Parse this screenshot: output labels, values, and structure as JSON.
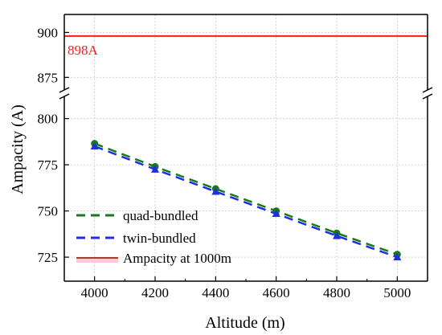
{
  "chart_data": {
    "type": "line",
    "xlabel": "Altitude (m)",
    "ylabel": "Ampacity (A)",
    "x": [
      4000,
      4200,
      4400,
      4600,
      4800,
      5000
    ],
    "xlim": [
      3900,
      5100
    ],
    "x_ticks": [
      "4000",
      "4200",
      "4400",
      "4600",
      "4800",
      "5000"
    ],
    "y_broken_axis": true,
    "ylim_lower": [
      712,
      812
    ],
    "ylim_upper": [
      868,
      910
    ],
    "y_ticks_lower": [
      "725",
      "750",
      "775",
      "800"
    ],
    "y_ticks_upper": [
      "875",
      "900"
    ],
    "grid": true,
    "legend_position": "bottom-left",
    "series": [
      {
        "name": "quad-bundled",
        "values": [
          786.5,
          774,
          762,
          750,
          738,
          726.5
        ],
        "color": "#1a7a1a",
        "dash": "dashed",
        "marker": "circle"
      },
      {
        "name": "twin-bundled",
        "values": [
          785,
          772.5,
          760.5,
          748.5,
          736.5,
          725
        ],
        "color": "#1f2fe0",
        "dash": "dashed",
        "marker": "triangle"
      }
    ],
    "reference_line": {
      "name": "Ampacity at 1000m",
      "value": 898,
      "label": "898A",
      "color": "#ff1a1a"
    }
  }
}
